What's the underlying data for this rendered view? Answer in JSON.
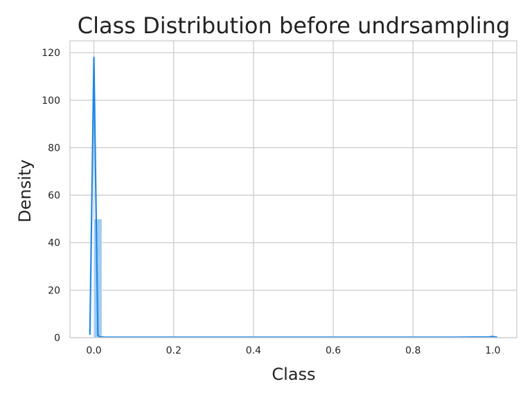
{
  "chart_data": {
    "type": "area",
    "title": "Class Distribution before undrsampling",
    "xlabel": "Class",
    "ylabel": "Density",
    "xlim": [
      -0.06,
      1.06
    ],
    "ylim": [
      0,
      125
    ],
    "x_ticks": [
      0.0,
      0.2,
      0.4,
      0.6,
      0.8,
      1.0
    ],
    "x_tick_labels": [
      "0.0",
      "0.2",
      "0.4",
      "0.6",
      "0.8",
      "1.0"
    ],
    "y_ticks": [
      0,
      20,
      40,
      60,
      80,
      100,
      120
    ],
    "y_tick_labels": [
      "0",
      "20",
      "40",
      "60",
      "80",
      "100",
      "120"
    ],
    "grid": true,
    "histogram": {
      "color": "#9fcbf5",
      "bins": [
        {
          "x0": 0.0,
          "x1": 0.02,
          "density": 49.9
        },
        {
          "x0": 0.98,
          "x1": 1.0,
          "density": 0.1
        }
      ]
    },
    "kde": {
      "color": "#1e88e5",
      "x": [
        -0.01,
        0.0,
        0.01,
        0.015,
        0.03,
        0.1,
        0.3,
        0.5,
        0.7,
        0.9,
        0.99,
        1.0,
        1.01
      ],
      "y": [
        1.5,
        118,
        1.0,
        0.3,
        0.2,
        0.2,
        0.2,
        0.2,
        0.2,
        0.2,
        0.3,
        0.5,
        0.2
      ]
    }
  },
  "colors": {
    "grid": "#cccccc",
    "text": "#222222"
  }
}
